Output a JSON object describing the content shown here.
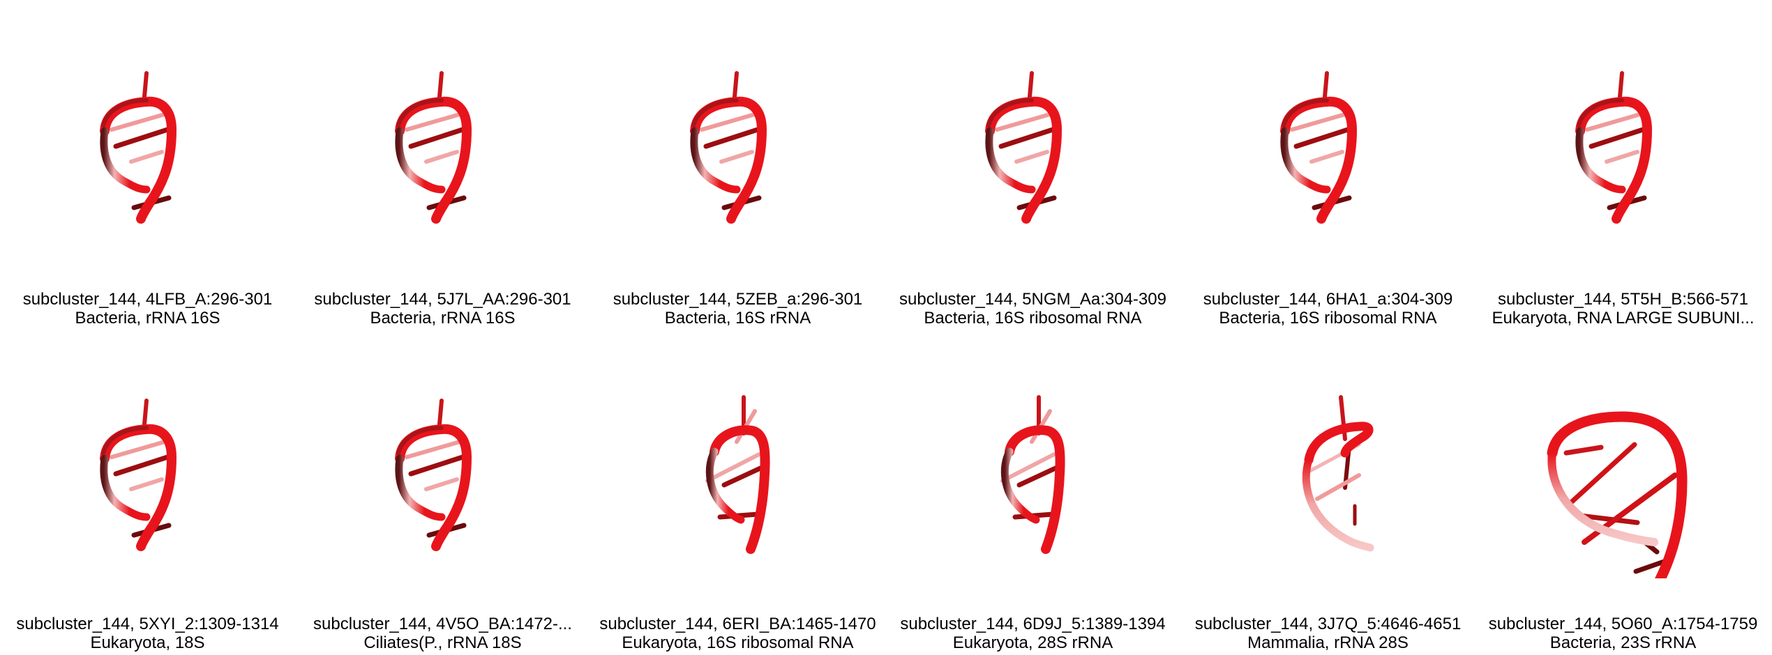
{
  "panels": [
    {
      "title": "subcluster_144, 4LFB_A:296-301",
      "subtitle": "Bacteria, rRNA 16S",
      "icon": "rna-helix-icon"
    },
    {
      "title": "subcluster_144, 5J7L_AA:296-301",
      "subtitle": "Bacteria, rRNA 16S",
      "icon": "rna-helix-icon"
    },
    {
      "title": "subcluster_144, 5ZEB_a:296-301",
      "subtitle": "Bacteria, 16S rRNA",
      "icon": "rna-helix-icon"
    },
    {
      "title": "subcluster_144, 5NGM_Aa:304-309",
      "subtitle": "Bacteria, 16S ribosomal RNA",
      "icon": "rna-helix-icon"
    },
    {
      "title": "subcluster_144, 6HA1_a:304-309",
      "subtitle": "Bacteria, 16S ribosomal RNA",
      "icon": "rna-helix-icon"
    },
    {
      "title": "subcluster_144, 5T5H_B:566-571",
      "subtitle": "Eukaryota, RNA LARGE SUBUNI...",
      "icon": "rna-helix-icon"
    },
    {
      "title": "subcluster_144, 5XYI_2:1309-1314",
      "subtitle": "Eukaryota, 18S",
      "icon": "rna-helix-icon"
    },
    {
      "title": "subcluster_144, 4V5O_BA:1472-...",
      "subtitle": "Ciliates(P., rRNA 18S",
      "icon": "rna-helix-icon"
    },
    {
      "title": "subcluster_144, 6ERI_BA:1465-1470",
      "subtitle": "Eukaryota, 16S ribosomal RNA",
      "icon": "rna-helix-icon"
    },
    {
      "title": "subcluster_144, 6D9J_5:1389-1394",
      "subtitle": "Eukaryota, 28S rRNA",
      "icon": "rna-helix-icon"
    },
    {
      "title": "subcluster_144, 3J7Q_5:4646-4651",
      "subtitle": "Mammalia, rRNA 28S",
      "icon": "rna-helix-icon"
    },
    {
      "title": "subcluster_144, 5O60_A:1754-1759",
      "subtitle": "Bacteria, 23S rRNA",
      "icon": "rna-helix-icon"
    }
  ],
  "colors": {
    "backbone": "#e8141c",
    "backbone_dark": "#5c1416",
    "backbone_light": "#f3b3b3",
    "base_dark": "#9c0d10",
    "base_light": "#f09a9a"
  }
}
